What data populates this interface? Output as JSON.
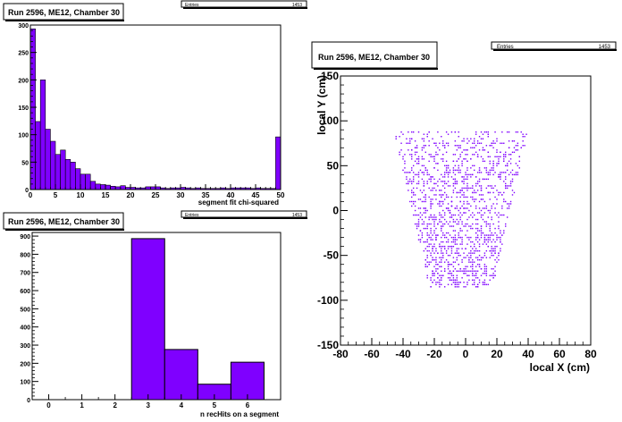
{
  "colors": {
    "fill": "#7f00ff",
    "frame": "#000000",
    "background": "#ffffff"
  },
  "chart_data": [
    {
      "type": "bar",
      "title": "Run 2596, ME12, Chamber 30",
      "stats": {
        "label": "Entries",
        "value": "1453"
      },
      "xlabel": "segment fit chi-squared",
      "ylabel": "",
      "xlim": [
        0,
        50
      ],
      "ylim": [
        0,
        300
      ],
      "xticks": [
        "0",
        "5",
        "10",
        "15",
        "20",
        "25",
        "30",
        "35",
        "40",
        "45",
        "50"
      ],
      "yticks": [
        "0",
        "50",
        "100",
        "150",
        "200",
        "250",
        "300"
      ],
      "bin_width": 1,
      "values": [
        293,
        124,
        200,
        110,
        88,
        64,
        72,
        55,
        50,
        38,
        28,
        28,
        15,
        10,
        9,
        8,
        6,
        5,
        7,
        4,
        4,
        3,
        3,
        5,
        5,
        5,
        3,
        2,
        3,
        3,
        4,
        3,
        2,
        3,
        2,
        2,
        2,
        2,
        3,
        2,
        3,
        3,
        3,
        3,
        2,
        3,
        2,
        2,
        2,
        96
      ],
      "grid": false
    },
    {
      "type": "bar",
      "title": "Run 2596, ME12, Chamber 30",
      "stats": {
        "label": "Entries",
        "value": "1453"
      },
      "xlabel": "n recHits on a segment",
      "ylabel": "",
      "xlim": [
        -0.5,
        7
      ],
      "ylim": [
        0,
        920
      ],
      "xticks": [
        "0",
        "1",
        "2",
        "3",
        "4",
        "5",
        "6"
      ],
      "yticks": [
        "0",
        "100",
        "200",
        "300",
        "400",
        "500",
        "600",
        "700",
        "800",
        "900"
      ],
      "categories": [
        3,
        4,
        5,
        6
      ],
      "values": [
        886,
        276,
        85,
        206
      ],
      "grid": false
    },
    {
      "type": "scatter",
      "title": "Run 2596, ME12, Chamber 30",
      "stats": {
        "label": "Entries",
        "value": "1453"
      },
      "xlabel": "local X (cm)",
      "ylabel": "local Y (cm)",
      "xlim": [
        -80,
        80
      ],
      "ylim": [
        -150,
        150
      ],
      "xticks": [
        "-80",
        "-60",
        "-40",
        "-20",
        "0",
        "20",
        "40",
        "60",
        "80"
      ],
      "yticks": [
        "-150",
        "-100",
        "-50",
        "0",
        "50",
        "100",
        "150"
      ],
      "region": {
        "y_min": -85,
        "y_max": 88,
        "half_width_top": 43,
        "half_width_bottom": 20,
        "x_offset": -3
      },
      "points": 1453,
      "grid": false
    }
  ]
}
